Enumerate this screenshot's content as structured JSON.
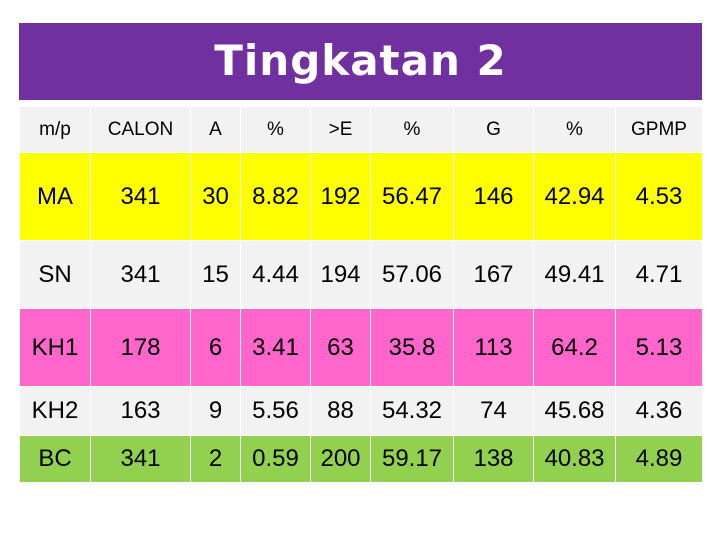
{
  "title": "Tingkatan 2",
  "table": {
    "headers": [
      "m/p",
      "CALON",
      "A",
      "%",
      ">E",
      "%",
      "G",
      "%",
      "GPMP"
    ],
    "rows": [
      {
        "cells": [
          "MA",
          "341",
          "30",
          "8.82",
          "192",
          "56.47",
          "146",
          "42.94",
          "4.53"
        ],
        "color": "#ffff00"
      },
      {
        "cells": [
          "SN",
          "341",
          "15",
          "4.44",
          "194",
          "57.06",
          "167",
          "49.41",
          "4.71"
        ],
        "color": "#f2f2f2"
      },
      {
        "cells": [
          "KH1",
          "178",
          "6",
          "3.41",
          "63",
          "35.8",
          "113",
          "64.2",
          "5.13"
        ],
        "color": "#ff66cc"
      },
      {
        "cells": [
          "KH2",
          "163",
          "9",
          "5.56",
          "88",
          "54.32",
          "74",
          "45.68",
          "4.36"
        ],
        "color": "#f2f2f2"
      },
      {
        "cells": [
          "BC",
          "341",
          "2",
          "0.59",
          "200",
          "59.17",
          "138",
          "40.83",
          "4.89"
        ],
        "color": "#92d050"
      }
    ]
  },
  "colors": {
    "title_bar": "#7030a0",
    "title_text": "#ffffff"
  }
}
